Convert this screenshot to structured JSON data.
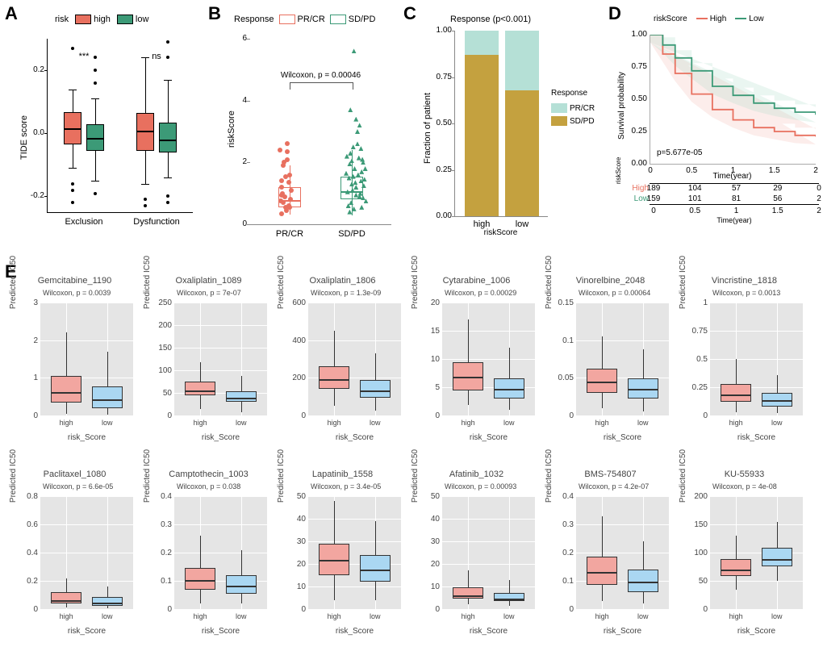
{
  "colors": {
    "high": "#e8705f",
    "low": "#3c9a77",
    "prcr_fill": "#b5e0d6",
    "sdpd_fill": "#c4a13f",
    "prcr_outline": "#e8705f",
    "sdpd_outline": "#3c9a77",
    "axis": "#000000",
    "eplot_high": "#f2a6a0",
    "eplot_low": "#aad7f2",
    "eplot_bg": "#e5e5e5",
    "eplot_grid": "#ffffff",
    "surv_high_band": "#f2b7b0",
    "surv_low_band": "#aadbc9"
  },
  "panelA": {
    "label": "A",
    "legend_title": "risk",
    "legend_items": [
      "high",
      "low"
    ],
    "ylabel": "TIDE score",
    "xlabels": [
      "Exclusion",
      "Dysfunction"
    ],
    "ylim": [
      -0.25,
      0.3
    ],
    "yticks": [
      -0.2,
      0.0,
      0.2
    ],
    "sig": [
      "***",
      "ns"
    ],
    "boxes": [
      {
        "group": "Exclusion",
        "level": "high",
        "q1": -0.035,
        "med": 0.018,
        "q3": 0.068,
        "lw": -0.11,
        "uw": 0.14,
        "outliers": [
          -0.18,
          -0.22,
          -0.16,
          0.27
        ]
      },
      {
        "group": "Exclusion",
        "level": "low",
        "q1": -0.055,
        "med": -0.012,
        "q3": 0.028,
        "lw": -0.15,
        "uw": 0.11,
        "outliers": [
          -0.19,
          0.16,
          0.2,
          0.24
        ]
      },
      {
        "group": "Dysfunction",
        "level": "high",
        "q1": -0.055,
        "med": 0.012,
        "q3": 0.065,
        "lw": -0.16,
        "uw": 0.24,
        "outliers": [
          -0.21,
          -0.23
        ]
      },
      {
        "group": "Dysfunction",
        "level": "low",
        "q1": -0.06,
        "med": -0.018,
        "q3": 0.035,
        "lw": -0.14,
        "uw": 0.17,
        "outliers": [
          0.24,
          0.29,
          -0.22,
          -0.2
        ]
      }
    ]
  },
  "panelB": {
    "label": "B",
    "legend_title": "Response",
    "legend_items": [
      "PR/CR",
      "SD/PD"
    ],
    "annotation": "Wilcoxon, p = 0.00046",
    "ylabel": "riskScore",
    "xlabels": [
      "PR/CR",
      "SD/PD"
    ],
    "ylim": [
      0,
      6
    ],
    "yticks": [
      0,
      2,
      4,
      6
    ],
    "boxes": [
      {
        "level": "PR/CR",
        "q1": 0.55,
        "med": 0.8,
        "q3": 1.2,
        "lw": 0.3,
        "uw": 1.9,
        "col": "#e8705f"
      },
      {
        "level": "SD/PD",
        "q1": 0.8,
        "med": 1.1,
        "q3": 1.55,
        "lw": 0.3,
        "uw": 2.4,
        "col": "#3c9a77"
      }
    ],
    "points_prcr": [
      [
        0.45,
        1.2
      ],
      [
        0.47,
        0.7
      ],
      [
        0.5,
        0.55
      ],
      [
        0.52,
        2.1
      ],
      [
        0.46,
        1.0
      ],
      [
        0.49,
        0.9
      ],
      [
        0.55,
        0.6
      ],
      [
        0.44,
        1.4
      ],
      [
        0.53,
        2.6
      ],
      [
        0.47,
        1.9
      ],
      [
        0.51,
        0.45
      ],
      [
        0.56,
        1.6
      ],
      [
        0.42,
        2.4
      ],
      [
        0.58,
        1.1
      ],
      [
        0.43,
        0.75
      ],
      [
        0.57,
        0.8
      ],
      [
        0.5,
        1.55
      ],
      [
        0.45,
        0.35
      ],
      [
        0.55,
        1.35
      ],
      [
        0.48,
        2.0
      ],
      [
        0.44,
        0.95
      ],
      [
        0.52,
        2.35
      ],
      [
        0.56,
        0.55
      ]
    ],
    "points_sdpd": [
      [
        1.4,
        1.5
      ],
      [
        1.45,
        1.1
      ],
      [
        1.55,
        0.9
      ],
      [
        1.6,
        2.0
      ],
      [
        1.42,
        2.3
      ],
      [
        1.47,
        0.5
      ],
      [
        1.5,
        1.2
      ],
      [
        1.58,
        1.7
      ],
      [
        1.43,
        0.7
      ],
      [
        1.52,
        2.6
      ],
      [
        1.56,
        1.0
      ],
      [
        1.44,
        1.3
      ],
      [
        1.59,
        2.1
      ],
      [
        1.48,
        1.8
      ],
      [
        1.41,
        0.4
      ],
      [
        1.57,
        1.4
      ],
      [
        1.46,
        2.5
      ],
      [
        1.53,
        1.6
      ],
      [
        1.6,
        0.85
      ],
      [
        1.38,
        1.05
      ],
      [
        1.5,
        3.4
      ],
      [
        1.55,
        3.2
      ],
      [
        1.42,
        3.7
      ],
      [
        1.47,
        5.6
      ],
      [
        1.39,
        0.6
      ],
      [
        1.61,
        1.25
      ],
      [
        1.5,
        0.95
      ],
      [
        1.44,
        2.05
      ],
      [
        1.57,
        2.45
      ],
      [
        1.62,
        1.45
      ],
      [
        1.36,
        1.65
      ],
      [
        1.64,
        0.75
      ],
      [
        1.49,
        1.35
      ],
      [
        1.54,
        2.15
      ],
      [
        1.41,
        1.95
      ],
      [
        1.58,
        0.55
      ],
      [
        1.46,
        1.55
      ],
      [
        1.52,
        3.0
      ],
      [
        1.37,
        2.2
      ],
      [
        1.63,
        1.8
      ]
    ]
  },
  "panelC": {
    "label": "C",
    "title": "Response (p<0.001)",
    "ylabel": "Fraction of patient",
    "xlabel": "riskScore",
    "xlabels": [
      "high",
      "low"
    ],
    "ylim": [
      0,
      1
    ],
    "yticks": [
      0.0,
      0.25,
      0.5,
      0.75,
      1.0
    ],
    "legend_title": "Response",
    "legend_items": [
      "PR/CR",
      "SD/PD"
    ],
    "bars": [
      {
        "x": "high",
        "sdpd": 0.87,
        "prcr": 0.13
      },
      {
        "x": "low",
        "sdpd": 0.68,
        "prcr": 0.32
      }
    ]
  },
  "panelD": {
    "label": "D",
    "legend_title": "riskScore",
    "legend_items": [
      "High",
      "Low"
    ],
    "xlabel": "Time(year)",
    "ylabel": "Survival probability",
    "pval": "p=5.677e-05",
    "xlim": [
      0,
      2
    ],
    "xticks": [
      0,
      0.5,
      1,
      1.5,
      2
    ],
    "ylim": [
      0,
      1
    ],
    "yticks": [
      0.0,
      0.25,
      0.5,
      0.75,
      1.0
    ],
    "curves": {
      "High": [
        [
          0,
          1.0
        ],
        [
          0.15,
          0.85
        ],
        [
          0.3,
          0.7
        ],
        [
          0.5,
          0.54
        ],
        [
          0.75,
          0.42
        ],
        [
          1.0,
          0.34
        ],
        [
          1.25,
          0.28
        ],
        [
          1.5,
          0.25
        ],
        [
          1.75,
          0.22
        ],
        [
          2.0,
          0.21
        ]
      ],
      "Low": [
        [
          0,
          1.0
        ],
        [
          0.15,
          0.92
        ],
        [
          0.3,
          0.82
        ],
        [
          0.5,
          0.72
        ],
        [
          0.75,
          0.6
        ],
        [
          1.0,
          0.53
        ],
        [
          1.25,
          0.47
        ],
        [
          1.5,
          0.43
        ],
        [
          1.75,
          0.4
        ],
        [
          2.0,
          0.38
        ]
      ]
    },
    "risk_table": {
      "header_label": "riskScore",
      "xlabel": "Time(year)",
      "times": [
        0,
        0.5,
        1,
        1.5,
        2
      ],
      "High": [
        189,
        104,
        57,
        29,
        0
      ],
      "Low": [
        159,
        101,
        81,
        56,
        2
      ]
    }
  },
  "panelE": {
    "label": "E",
    "ylabel": "Predicted IC50",
    "xlabel": "risk_Score",
    "xlabels": [
      "high",
      "low"
    ],
    "panels": [
      {
        "title": "Gemcitabine_1190",
        "p": "Wilcoxon, p = 0.0039",
        "ylim": [
          0,
          3
        ],
        "yticks": [
          0,
          1,
          2,
          3
        ],
        "high": {
          "q1": 0.35,
          "med": 0.65,
          "q3": 1.05,
          "lw": 0.05,
          "uw": 2.2
        },
        "low": {
          "q1": 0.2,
          "med": 0.45,
          "q3": 0.78,
          "lw": 0.02,
          "uw": 1.7
        }
      },
      {
        "title": "Oxaliplatin_1089",
        "p": "Wilcoxon, p = 7e-07",
        "ylim": [
          0,
          250
        ],
        "yticks": [
          0,
          50,
          100,
          150,
          200,
          250
        ],
        "high": {
          "q1": 44,
          "med": 58,
          "q3": 75,
          "lw": 15,
          "uw": 118
        },
        "low": {
          "q1": 30,
          "med": 41,
          "q3": 53,
          "lw": 7,
          "uw": 88
        }
      },
      {
        "title": "Oxaliplatin_1806",
        "p": "Wilcoxon, p = 1.3e-09",
        "ylim": [
          0,
          600
        ],
        "yticks": [
          0,
          200,
          400,
          600
        ],
        "high": {
          "q1": 140,
          "med": 195,
          "q3": 260,
          "lw": 50,
          "uw": 450
        },
        "low": {
          "q1": 95,
          "med": 135,
          "q3": 190,
          "lw": 25,
          "uw": 330
        }
      },
      {
        "title": "Cytarabine_1006",
        "p": "Wilcoxon, p = 0.00029",
        "ylim": [
          0,
          20
        ],
        "yticks": [
          0,
          5,
          10,
          15,
          20
        ],
        "high": {
          "q1": 4.5,
          "med": 7.0,
          "q3": 9.5,
          "lw": 1.8,
          "uw": 17
        },
        "low": {
          "q1": 3.0,
          "med": 4.8,
          "q3": 6.6,
          "lw": 1.0,
          "uw": 12
        }
      },
      {
        "title": "Vinorelbine_2048",
        "p": "Wilcoxon, p = 0.00064",
        "ylim": [
          0,
          0.15
        ],
        "yticks": [
          0.0,
          0.05,
          0.1,
          0.15
        ],
        "high": {
          "q1": 0.03,
          "med": 0.046,
          "q3": 0.062,
          "lw": 0.01,
          "uw": 0.105
        },
        "low": {
          "q1": 0.022,
          "med": 0.036,
          "q3": 0.049,
          "lw": 0.005,
          "uw": 0.088
        }
      },
      {
        "title": "Vincristine_1818",
        "p": "Wilcoxon, p = 0.0013",
        "ylim": [
          0,
          1.0
        ],
        "yticks": [
          0.0,
          0.25,
          0.5,
          0.75,
          1.0
        ],
        "high": {
          "q1": 0.12,
          "med": 0.19,
          "q3": 0.28,
          "lw": 0.03,
          "uw": 0.5
        },
        "low": {
          "q1": 0.08,
          "med": 0.14,
          "q3": 0.2,
          "lw": 0.02,
          "uw": 0.36
        }
      },
      {
        "title": "Paclitaxel_1080",
        "p": "Wilcoxon, p = 6.6e-05",
        "ylim": [
          0,
          0.8
        ],
        "yticks": [
          0.0,
          0.2,
          0.4,
          0.6,
          0.8
        ],
        "high": {
          "q1": 0.04,
          "med": 0.07,
          "q3": 0.12,
          "lw": 0.01,
          "uw": 0.22
        },
        "low": {
          "q1": 0.025,
          "med": 0.05,
          "q3": 0.085,
          "lw": 0.005,
          "uw": 0.16
        }
      },
      {
        "title": "Camptothecin_1003",
        "p": "Wilcoxon, p = 0.038",
        "ylim": [
          0,
          0.4
        ],
        "yticks": [
          0.0,
          0.1,
          0.2,
          0.3,
          0.4
        ],
        "high": {
          "q1": 0.07,
          "med": 0.105,
          "q3": 0.145,
          "lw": 0.02,
          "uw": 0.26
        },
        "low": {
          "q1": 0.055,
          "med": 0.085,
          "q3": 0.12,
          "lw": 0.02,
          "uw": 0.21
        }
      },
      {
        "title": "Lapatinib_1558",
        "p": "Wilcoxon, p = 3.4e-05",
        "ylim": [
          0,
          50
        ],
        "yticks": [
          0,
          10,
          20,
          30,
          40,
          50
        ],
        "high": {
          "q1": 15,
          "med": 22,
          "q3": 29,
          "lw": 4,
          "uw": 48
        },
        "low": {
          "q1": 12,
          "med": 18,
          "q3": 24,
          "lw": 4,
          "uw": 39
        }
      },
      {
        "title": "Afatinib_1032",
        "p": "Wilcoxon, p = 0.00093",
        "ylim": [
          0,
          50
        ],
        "yticks": [
          0,
          10,
          20,
          30,
          40,
          50
        ],
        "high": {
          "q1": 4.5,
          "med": 6.5,
          "q3": 9.5,
          "lw": 2,
          "uw": 17
        },
        "low": {
          "q1": 3.5,
          "med": 5.0,
          "q3": 7.2,
          "lw": 1.5,
          "uw": 13
        }
      },
      {
        "title": "BMS-754807",
        "p": "Wilcoxon, p = 4.2e-07",
        "ylim": [
          0,
          0.4
        ],
        "yticks": [
          0.0,
          0.1,
          0.2,
          0.3,
          0.4
        ],
        "high": {
          "q1": 0.085,
          "med": 0.135,
          "q3": 0.185,
          "lw": 0.03,
          "uw": 0.33
        },
        "low": {
          "q1": 0.06,
          "med": 0.1,
          "q3": 0.14,
          "lw": 0.02,
          "uw": 0.24
        }
      },
      {
        "title": "KU-55933",
        "p": "Wilcoxon, p = 4e-08",
        "ylim": [
          0,
          200
        ],
        "yticks": [
          0,
          50,
          100,
          150,
          200
        ],
        "high": {
          "q1": 58,
          "med": 72,
          "q3": 88,
          "lw": 35,
          "uw": 130
        },
        "low": {
          "q1": 75,
          "med": 90,
          "q3": 108,
          "lw": 50,
          "uw": 155
        }
      }
    ]
  }
}
